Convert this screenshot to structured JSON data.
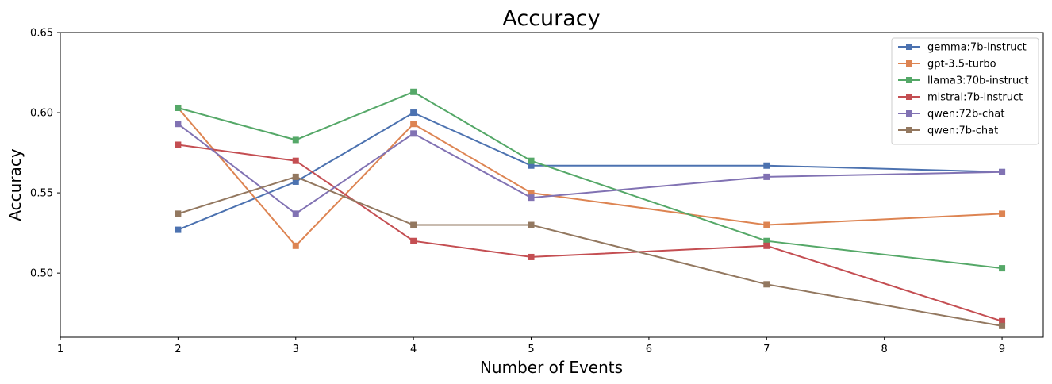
{
  "chart_data": {
    "type": "line",
    "title": "Accuracy",
    "xlabel": "Number of Events",
    "ylabel": "Accuracy",
    "xlim": [
      1,
      9.35
    ],
    "ylim": [
      0.46,
      0.65
    ],
    "x_ticks": [
      1,
      2,
      3,
      4,
      5,
      6,
      7,
      8,
      9
    ],
    "y_ticks": [
      0.5,
      0.55,
      0.6,
      0.65
    ],
    "y_tick_labels": [
      "0.50",
      "0.55",
      "0.60",
      "0.65"
    ],
    "grid": false,
    "legend_position": "top-right",
    "x": [
      2,
      3,
      4,
      5,
      7,
      9
    ],
    "series": [
      {
        "name": "gemma:7b-instruct",
        "color": "#4c72b0",
        "values": [
          0.527,
          0.557,
          0.6,
          0.567,
          0.567,
          0.563
        ]
      },
      {
        "name": "gpt-3.5-turbo",
        "color": "#dd8452",
        "values": [
          0.603,
          0.517,
          0.593,
          0.55,
          0.53,
          0.537
        ]
      },
      {
        "name": "llama3:70b-instruct",
        "color": "#55a868",
        "values": [
          0.603,
          0.583,
          0.613,
          0.57,
          0.52,
          0.503
        ]
      },
      {
        "name": "mistral:7b-instruct",
        "color": "#c44e52",
        "values": [
          0.58,
          0.57,
          0.52,
          0.51,
          0.517,
          0.47
        ]
      },
      {
        "name": "qwen:72b-chat",
        "color": "#8172b3",
        "values": [
          0.593,
          0.537,
          0.587,
          0.547,
          0.56,
          0.563
        ]
      },
      {
        "name": "qwen:7b-chat",
        "color": "#937860",
        "values": [
          0.537,
          0.56,
          0.53,
          0.53,
          0.493,
          0.467
        ]
      }
    ]
  }
}
